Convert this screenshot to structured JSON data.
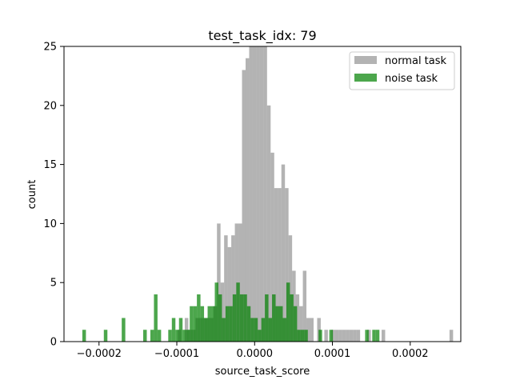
{
  "chart_data": {
    "type": "histogram",
    "title": "test_task_idx: 79",
    "xlabel": "source_task_score",
    "ylabel": "count",
    "xlim": [
      -0.000245,
      0.000265
    ],
    "ylim": [
      0,
      25
    ],
    "x_ticks": [
      -0.0002,
      -0.0001,
      0.0,
      0.0001,
      0.0002
    ],
    "x_tick_labels": [
      "−0.0002",
      "−0.0001",
      "0.0000",
      "0.0001",
      "0.0002"
    ],
    "y_ticks": [
      0,
      5,
      10,
      15,
      20,
      25
    ],
    "y_tick_labels": [
      "0",
      "5",
      "10",
      "15",
      "20",
      "25"
    ],
    "bin_width": 4.6e-06,
    "legend": {
      "position": "upper-right",
      "frame": true
    },
    "series": [
      {
        "name": "normal task",
        "color": "#808080",
        "alpha": 0.6,
        "bins": [
          {
            "x": -9.67e-05,
            "count": 1
          },
          {
            "x": -8.75e-05,
            "count": 2
          },
          {
            "x": -8.29e-05,
            "count": 1
          },
          {
            "x": -7.83e-05,
            "count": 1
          },
          {
            "x": -7.37e-05,
            "count": 2
          },
          {
            "x": -6.91e-05,
            "count": 2
          },
          {
            "x": -6.45e-05,
            "count": 2
          },
          {
            "x": -5.99e-05,
            "count": 2
          },
          {
            "x": -5.53e-05,
            "count": 2
          },
          {
            "x": -5.07e-05,
            "count": 3
          },
          {
            "x": -4.61e-05,
            "count": 10
          },
          {
            "x": -4.15e-05,
            "count": 5
          },
          {
            "x": -3.69e-05,
            "count": 9
          },
          {
            "x": -3.23e-05,
            "count": 8
          },
          {
            "x": -2.77e-05,
            "count": 9
          },
          {
            "x": -2.31e-05,
            "count": 10
          },
          {
            "x": -1.85e-05,
            "count": 10
          },
          {
            "x": -1.39e-05,
            "count": 23
          },
          {
            "x": -9.3e-06,
            "count": 24
          },
          {
            "x": -4.7e-06,
            "count": 25
          },
          {
            "x": -1e-07,
            "count": 25
          },
          {
            "x": 4.5e-06,
            "count": 25
          },
          {
            "x": 9.1e-06,
            "count": 25
          },
          {
            "x": 1.37e-05,
            "count": 25
          },
          {
            "x": 1.83e-05,
            "count": 20
          },
          {
            "x": 2.29e-05,
            "count": 16
          },
          {
            "x": 2.75e-05,
            "count": 13
          },
          {
            "x": 3.21e-05,
            "count": 13
          },
          {
            "x": 3.67e-05,
            "count": 15
          },
          {
            "x": 4.13e-05,
            "count": 13
          },
          {
            "x": 4.59e-05,
            "count": 9
          },
          {
            "x": 5.05e-05,
            "count": 6
          },
          {
            "x": 5.51e-05,
            "count": 4
          },
          {
            "x": 5.97e-05,
            "count": 3
          },
          {
            "x": 6.43e-05,
            "count": 6
          },
          {
            "x": 6.89e-05,
            "count": 2
          },
          {
            "x": 7.35e-05,
            "count": 2
          },
          {
            "x": 8.27e-05,
            "count": 2
          },
          {
            "x": 9.19e-05,
            "count": 1
          },
          {
            "x": 0.0001011,
            "count": 1
          },
          {
            "x": 0.0001057,
            "count": 1
          },
          {
            "x": 0.0001103,
            "count": 1
          },
          {
            "x": 0.0001149,
            "count": 1
          },
          {
            "x": 0.0001195,
            "count": 1
          },
          {
            "x": 0.0001241,
            "count": 1
          },
          {
            "x": 0.0001287,
            "count": 1
          },
          {
            "x": 0.0001333,
            "count": 1
          },
          {
            "x": 0.0001471,
            "count": 1
          },
          {
            "x": 0.0001655,
            "count": 1
          },
          {
            "x": 0.0002528,
            "count": 1
          }
        ]
      },
      {
        "name": "noise task",
        "color": "#008000",
        "alpha": 0.7,
        "bins": [
          {
            "x": -0.0002191,
            "count": 1
          },
          {
            "x": -0.0001915,
            "count": 1
          },
          {
            "x": -0.0001685,
            "count": 2
          },
          {
            "x": -0.0001409,
            "count": 1
          },
          {
            "x": -0.0001317,
            "count": 1
          },
          {
            "x": -0.0001271,
            "count": 4
          },
          {
            "x": -0.0001225,
            "count": 1
          },
          {
            "x": -0.0001087,
            "count": 1
          },
          {
            "x": -0.0001041,
            "count": 2
          },
          {
            "x": -9.95e-05,
            "count": 1
          },
          {
            "x": -9.49e-05,
            "count": 2
          },
          {
            "x": -9.03e-05,
            "count": 1
          },
          {
            "x": -8.57e-05,
            "count": 1
          },
          {
            "x": -8.11e-05,
            "count": 3
          },
          {
            "x": -7.65e-05,
            "count": 3
          },
          {
            "x": -7.19e-05,
            "count": 4
          },
          {
            "x": -6.73e-05,
            "count": 3
          },
          {
            "x": -6.27e-05,
            "count": 2
          },
          {
            "x": -5.81e-05,
            "count": 3
          },
          {
            "x": -5.35e-05,
            "count": 3
          },
          {
            "x": -4.89e-05,
            "count": 5
          },
          {
            "x": -4.43e-05,
            "count": 4
          },
          {
            "x": -3.97e-05,
            "count": 2
          },
          {
            "x": -3.51e-05,
            "count": 3
          },
          {
            "x": -3.05e-05,
            "count": 3
          },
          {
            "x": -2.59e-05,
            "count": 4
          },
          {
            "x": -2.13e-05,
            "count": 5
          },
          {
            "x": -1.67e-05,
            "count": 4
          },
          {
            "x": -1.21e-05,
            "count": 4
          },
          {
            "x": -7.5e-06,
            "count": 3
          },
          {
            "x": -2.9e-06,
            "count": 2
          },
          {
            "x": 1.7e-06,
            "count": 2
          },
          {
            "x": 6.3e-06,
            "count": 1
          },
          {
            "x": 1.09e-05,
            "count": 2
          },
          {
            "x": 1.55e-05,
            "count": 4
          },
          {
            "x": 2.01e-05,
            "count": 2
          },
          {
            "x": 2.47e-05,
            "count": 4
          },
          {
            "x": 2.93e-05,
            "count": 3
          },
          {
            "x": 3.39e-05,
            "count": 3
          },
          {
            "x": 3.85e-05,
            "count": 2
          },
          {
            "x": 4.31e-05,
            "count": 5
          },
          {
            "x": 4.77e-05,
            "count": 4
          },
          {
            "x": 5.23e-05,
            "count": 3
          },
          {
            "x": 5.69e-05,
            "count": 1
          },
          {
            "x": 6.15e-05,
            "count": 1
          },
          {
            "x": 6.61e-05,
            "count": 1
          },
          {
            "x": 8.45e-05,
            "count": 1
          },
          {
            "x": 9.83e-05,
            "count": 1
          },
          {
            "x": 0.0001443,
            "count": 1
          },
          {
            "x": 0.0001535,
            "count": 1
          },
          {
            "x": 0.0001581,
            "count": 1
          }
        ]
      }
    ]
  }
}
